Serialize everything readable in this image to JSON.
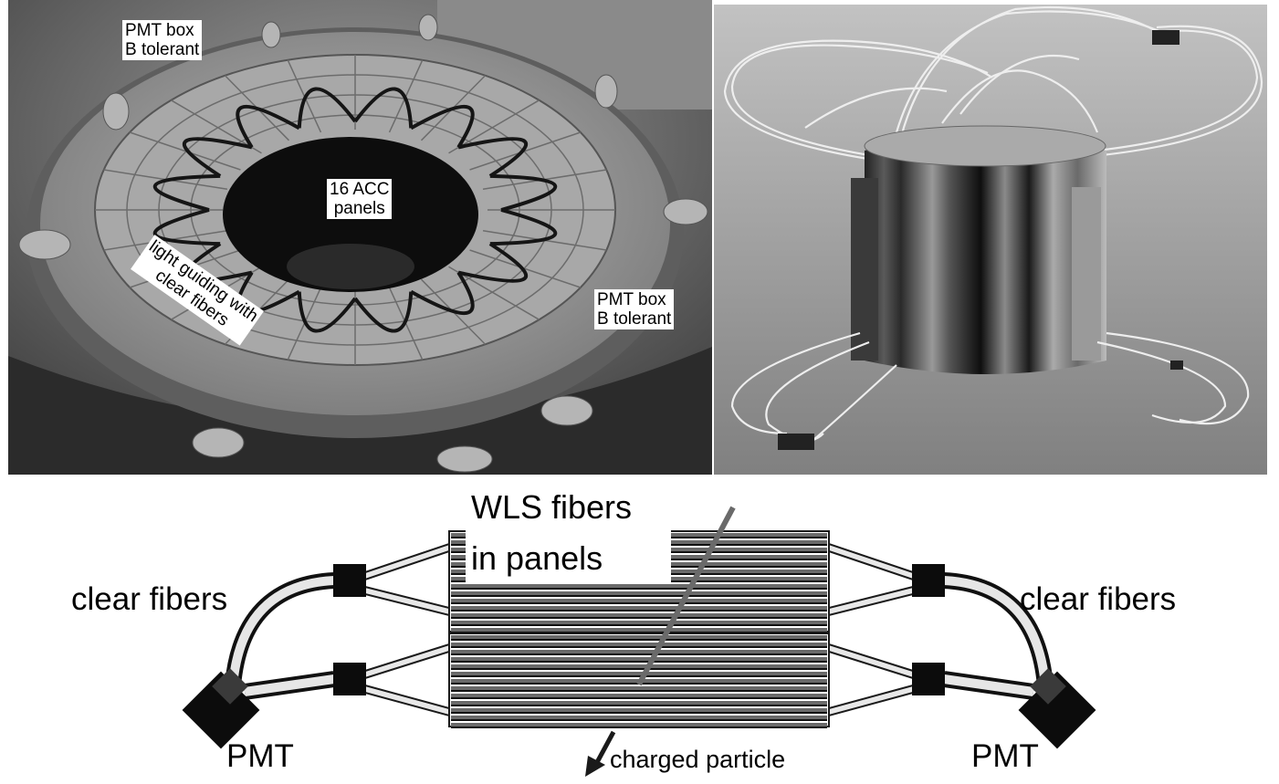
{
  "photo": {
    "label_pmt_box_top": "PMT box\nB tolerant",
    "label_pmt_box_right": "PMT box\nB tolerant",
    "label_acc_panels": "16 ACC\npanels",
    "label_light_guiding": "light guiding with\nclear fibers"
  },
  "diagram": {
    "wls_line1": "WLS fibers",
    "wls_line2": "in panels",
    "clear_fibers_left": "clear fibers",
    "clear_fibers_right": "clear fibers",
    "pmt_left": "PMT",
    "pmt_right": "PMT",
    "charged_particle": "charged particle"
  },
  "colors": {
    "photo_bg": "#6e6e6e",
    "render_bg": "#9a9a9a",
    "fiber_dark": "#1a1a1a",
    "panel_stripe": "#6a6a6a"
  }
}
